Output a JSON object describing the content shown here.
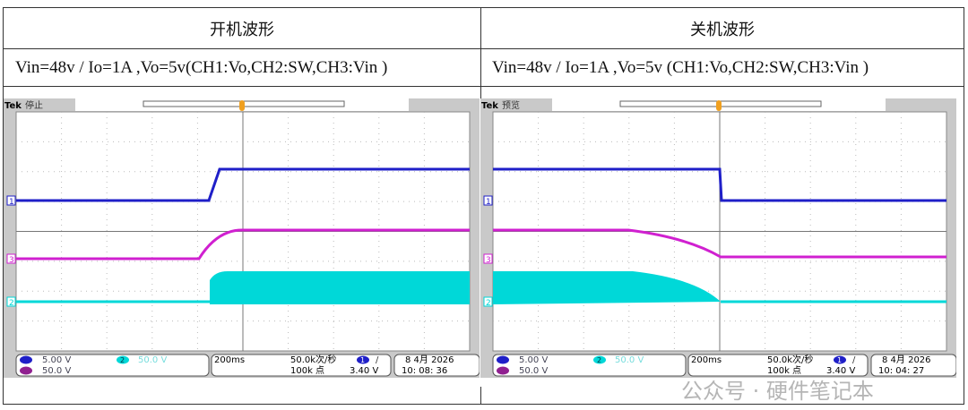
{
  "panels": [
    {
      "title": "开机波形",
      "condition": "Vin=48v / Io=1A ,Vo=5v(CH1:Vo,CH2:SW,CH3:Vin )",
      "brand": "Tek",
      "state": "停止",
      "mode": "power-on",
      "ch1": "5.00 V",
      "ch2": "50.0 V",
      "ch3": "50.0 V",
      "timebase": "200ms",
      "rate": "50.0k次/秒",
      "points": "100k 点",
      "trig_ch": "1",
      "trig_level": "3.40 V",
      "date": "8 4月  2026",
      "time": "10: 08: 36"
    },
    {
      "title": "关机波形",
      "condition": "Vin=48v / Io=1A ,Vo=5v (CH1:Vo,CH2:SW,CH3:Vin )",
      "brand": "Tek",
      "state": "预览",
      "mode": "power-off",
      "ch1": "5.00 V",
      "ch2": "50.0 V",
      "ch3": "50.0 V",
      "timebase": "200ms",
      "rate": "50.0k次/秒",
      "points": "100k 点",
      "trig_ch": "1",
      "trig_level": "3.40 V",
      "date": "8 4月  2026",
      "time": "10: 04: 27"
    }
  ],
  "colors": {
    "ch1": "#1f1fc8",
    "ch2": "#00d8d8",
    "ch3": "#d020d0",
    "screen_bg": "#c9c9c9"
  },
  "watermark": "公众号 · 硬件笔记本"
}
